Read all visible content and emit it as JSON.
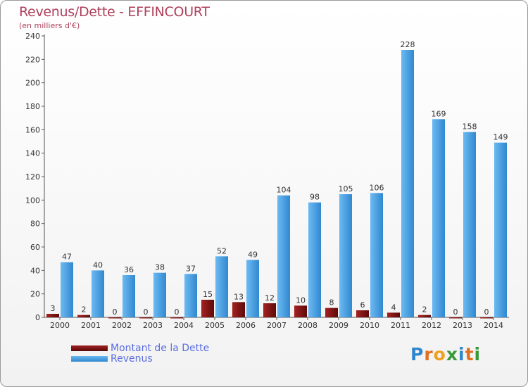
{
  "chart_data": {
    "type": "bar",
    "title": "Revenus/Dette - EFFINCOURT",
    "subtitle": "(en milliers d'€)",
    "categories": [
      "2000",
      "2001",
      "2002",
      "2003",
      "2004",
      "2005",
      "2006",
      "2007",
      "2008",
      "2009",
      "2010",
      "2011",
      "2012",
      "2013",
      "2014"
    ],
    "series": [
      {
        "name": "Montant de la Dette",
        "color": "#8b1515",
        "values": [
          3,
          2,
          0,
          0,
          0,
          15,
          13,
          12,
          10,
          8,
          6,
          4,
          2,
          0,
          0
        ]
      },
      {
        "name": "Revenus",
        "color": "#4aa0e6",
        "values": [
          47,
          40,
          36,
          38,
          37,
          52,
          49,
          104,
          98,
          105,
          106,
          228,
          169,
          158,
          149
        ]
      }
    ],
    "ylim": [
      0,
      240
    ],
    "yticks": [
      0,
      20,
      40,
      60,
      80,
      100,
      120,
      140,
      160,
      180,
      200,
      220,
      240
    ],
    "grid": false,
    "legend": "bottom-left"
  },
  "legend": {
    "debt_label": "Montant de la Dette",
    "revenue_label": "Revenus"
  },
  "logo": {
    "text": "Proxiti"
  }
}
